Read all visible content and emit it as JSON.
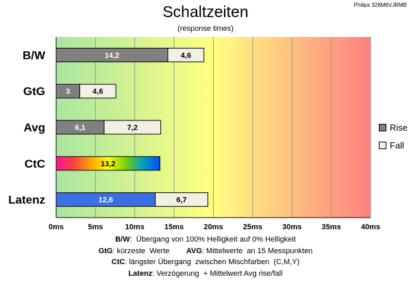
{
  "header": {
    "title": "Schaltzeiten",
    "subtitle": "(response times)",
    "model": "Philips 326M6VJRMB"
  },
  "colors": {
    "rise": "#808080",
    "fall": "#f2f0e4",
    "latenz_rise": "#3c6ee6",
    "background_gradient": [
      "#a8e6a0",
      "#ffff80",
      "#ff8080"
    ],
    "ctc_gradient": [
      "#ff1493",
      "#ff4040",
      "#ffa500",
      "#ffff00",
      "#7fd000",
      "#00a0c0",
      "#0050ff"
    ]
  },
  "legend": [
    {
      "label": "Rise",
      "key": "rise"
    },
    {
      "label": "Fall",
      "key": "fall"
    }
  ],
  "chart_data": {
    "type": "bar",
    "orientation": "horizontal",
    "stacked": true,
    "categories": [
      "B/W",
      "GtG",
      "Avg",
      "CtC",
      "Latenz"
    ],
    "series": [
      {
        "name": "Rise",
        "values": [
          14.2,
          3,
          6.1,
          13.2,
          12.6
        ]
      },
      {
        "name": "Fall",
        "values": [
          4.6,
          4.6,
          7.2,
          null,
          6.7
        ]
      }
    ],
    "value_labels": [
      [
        "14,2",
        "4,6"
      ],
      [
        "3",
        "4,6"
      ],
      [
        "6,1",
        "7,2"
      ],
      [
        "13,2",
        ""
      ],
      [
        "12,6",
        "6,7"
      ]
    ],
    "xlim": [
      0,
      40
    ],
    "xticks": [
      "0ms",
      "5ms",
      "10ms",
      "15ms",
      "20ms",
      "25ms",
      "30ms",
      "35ms",
      "40ms"
    ],
    "grid": "vertical",
    "legend_position": "right"
  },
  "footer": [
    {
      "parts": [
        {
          "bold": "B/W"
        },
        {
          "text": ":  Übergang von 100% Helligkeit auf 0% Helligkeit"
        }
      ]
    },
    {
      "parts": [
        {
          "bold": "GtG"
        },
        {
          "text": ": kürzeste  Werte        "
        },
        {
          "bold": "AVG"
        },
        {
          "text": ": Mittelwerte  an 15 Messpunkten"
        }
      ]
    },
    {
      "parts": [
        {
          "bold": "CtC"
        },
        {
          "text": ": längster Übergang  zwischen Mischfarben  (C,M,Y)"
        }
      ]
    },
    {
      "parts": [
        {
          "bold": "Latenz"
        },
        {
          "text": ": Verzögerung  + Mittelwert Avg rise/fall"
        }
      ]
    }
  ]
}
